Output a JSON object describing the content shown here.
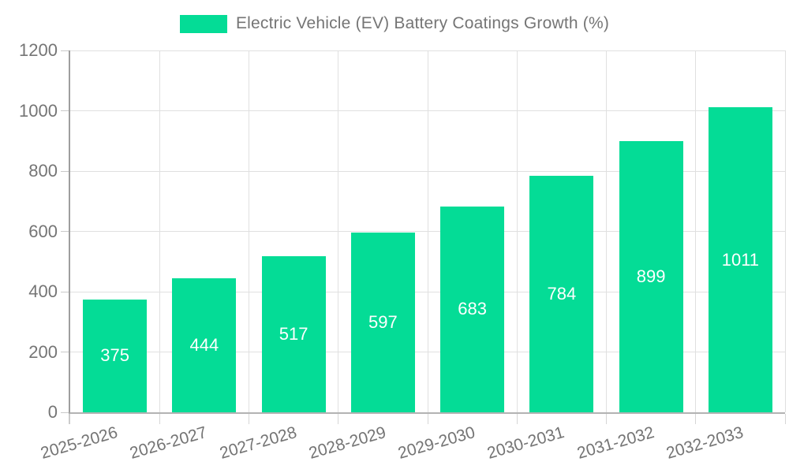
{
  "legend": {
    "label": "Electric Vehicle (EV) Battery Coatings Growth (%)"
  },
  "chart_data": {
    "type": "bar",
    "title": "Electric Vehicle (EV) Battery Coatings Growth (%)",
    "categories": [
      "2025-2026",
      "2026-2027",
      "2027-2028",
      "2028-2029",
      "2029-2030",
      "2030-2031",
      "2031-2032",
      "2032-2033"
    ],
    "values": [
      375,
      444,
      517,
      597,
      683,
      784,
      899,
      1011
    ],
    "series": [
      {
        "name": "Electric Vehicle (EV) Battery Coatings Growth (%)",
        "values": [
          375,
          444,
          517,
          597,
          683,
          784,
          899,
          1011
        ]
      }
    ],
    "xlabel": "",
    "ylabel": "",
    "ylim": [
      0,
      1200
    ],
    "yticks": [
      0,
      200,
      400,
      600,
      800,
      1000,
      1200
    ],
    "grid": true,
    "legend_position": "top-center",
    "x_label_rotation_deg": -16,
    "value_labels": "inside-center",
    "colors": {
      "bar": "#04dc96",
      "value_label": "#ffffff",
      "axis_text": "#757575",
      "gridline": "#e0e0e0",
      "axis_line": "#9e9e9e",
      "baseline": "#b3b3b3"
    }
  }
}
